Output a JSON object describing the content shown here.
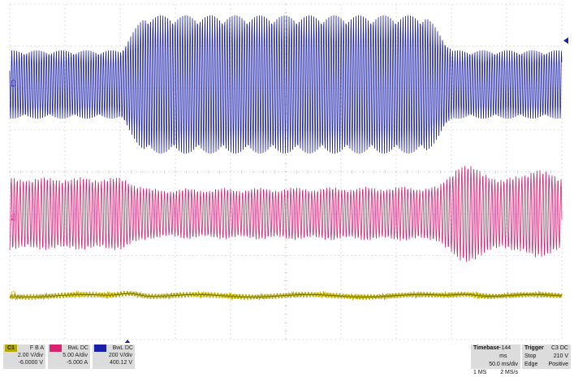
{
  "channels": [
    {
      "tag": "C1",
      "coupling": "F B A",
      "scale": "2.00 V/div",
      "offset": "-6.0000 V",
      "color": "#b5a900",
      "label_color": "#222"
    },
    {
      "tag": "C2",
      "coupling": "BwL DC",
      "scale": "5.00 A/div",
      "offset": "-5.000 A",
      "color": "#d6246f",
      "label_color": "#222"
    },
    {
      "tag": "C3",
      "coupling": "BwL DC",
      "scale": "200 V/div",
      "offset": "400.12 V",
      "color": "#1b1fa8",
      "label_color": "#222"
    }
  ],
  "trace_labels": {
    "c3": "C3",
    "c2": "C2",
    "c1": "C1"
  },
  "timebase": {
    "title": "Timebase",
    "delay": "-144 ms",
    "tdiv": "50.0 ms/div",
    "points": "1 MS",
    "rate": "2 MS/s"
  },
  "trigger": {
    "title": "Trigger",
    "source": "C3 DC",
    "mode": "Stop",
    "level": "210 V",
    "type": "Edge",
    "slope": "Positive"
  },
  "colors": {
    "grid": "#c8c8c8",
    "c1": "#b5a900",
    "c2": "#d6246f",
    "c3": "#1b1fa8"
  }
}
